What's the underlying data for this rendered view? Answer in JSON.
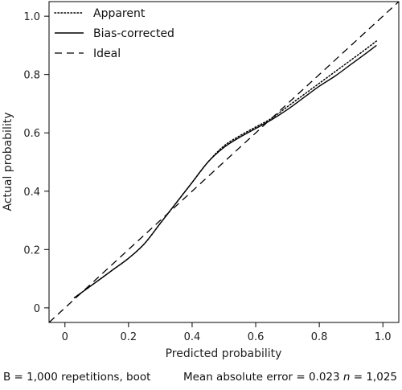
{
  "chart_data": {
    "type": "line",
    "xlabel": "Predicted probability",
    "ylabel": "Actual probability",
    "xlim": [
      -0.05,
      1.05
    ],
    "ylim": [
      -0.05,
      1.05
    ],
    "xticks": [
      "0",
      "0.2",
      "0.4",
      "0.6",
      "0.8",
      "1.0"
    ],
    "yticks": [
      "0",
      "0.2",
      "0.4",
      "0.6",
      "0.8",
      "1.0"
    ],
    "legend_position": "top-left",
    "series": [
      {
        "name": "Apparent",
        "style": "dotted",
        "x": [
          0.03,
          0.1,
          0.15,
          0.2,
          0.25,
          0.3,
          0.35,
          0.4,
          0.45,
          0.5,
          0.55,
          0.6,
          0.65,
          0.7,
          0.75,
          0.8,
          0.85,
          0.9,
          0.95,
          0.98
        ],
        "y": [
          0.035,
          0.09,
          0.13,
          0.17,
          0.22,
          0.29,
          0.36,
          0.43,
          0.5,
          0.555,
          0.59,
          0.62,
          0.65,
          0.69,
          0.73,
          0.77,
          0.81,
          0.85,
          0.89,
          0.915
        ]
      },
      {
        "name": "Bias-corrected",
        "style": "solid",
        "x": [
          0.03,
          0.1,
          0.15,
          0.2,
          0.25,
          0.3,
          0.35,
          0.4,
          0.45,
          0.5,
          0.55,
          0.6,
          0.65,
          0.7,
          0.75,
          0.8,
          0.85,
          0.9,
          0.95,
          0.98
        ],
        "y": [
          0.035,
          0.09,
          0.13,
          0.17,
          0.22,
          0.29,
          0.36,
          0.43,
          0.5,
          0.55,
          0.585,
          0.615,
          0.645,
          0.68,
          0.72,
          0.76,
          0.795,
          0.835,
          0.875,
          0.9
        ]
      },
      {
        "name": "Ideal",
        "style": "dashed",
        "x": [
          -0.05,
          1.05
        ],
        "y": [
          -0.05,
          1.05
        ]
      }
    ]
  },
  "footer": {
    "left": "B = 1,000 repetitions, boot",
    "right_prefix": "Mean absolute error = 0.023 ",
    "right_n": "n",
    "right_suffix": " = 1,025"
  }
}
